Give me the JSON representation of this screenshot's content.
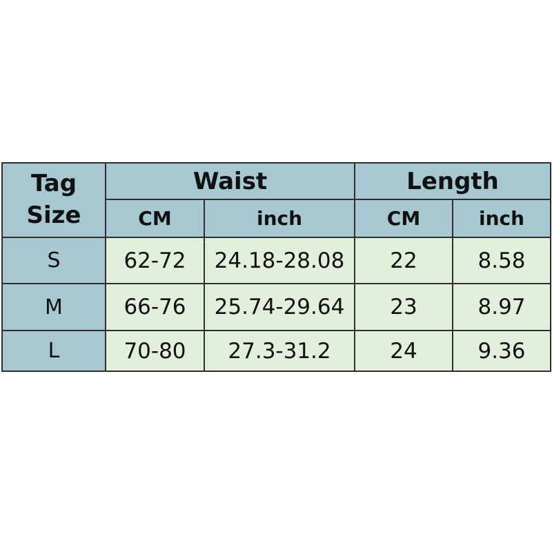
{
  "table": {
    "header": {
      "tag_size": "Tag Size",
      "groups": [
        "Waist",
        "Length"
      ],
      "units": [
        "CM",
        "inch",
        "CM",
        "inch"
      ]
    },
    "rows": [
      [
        "S",
        "62-72",
        "24.18-28.08",
        "22",
        "8.58"
      ],
      [
        "M",
        "66-76",
        "25.74-29.64",
        "23",
        "8.97"
      ],
      [
        "L",
        "70-80",
        "27.3-31.2",
        "24",
        "9.36"
      ]
    ]
  }
}
